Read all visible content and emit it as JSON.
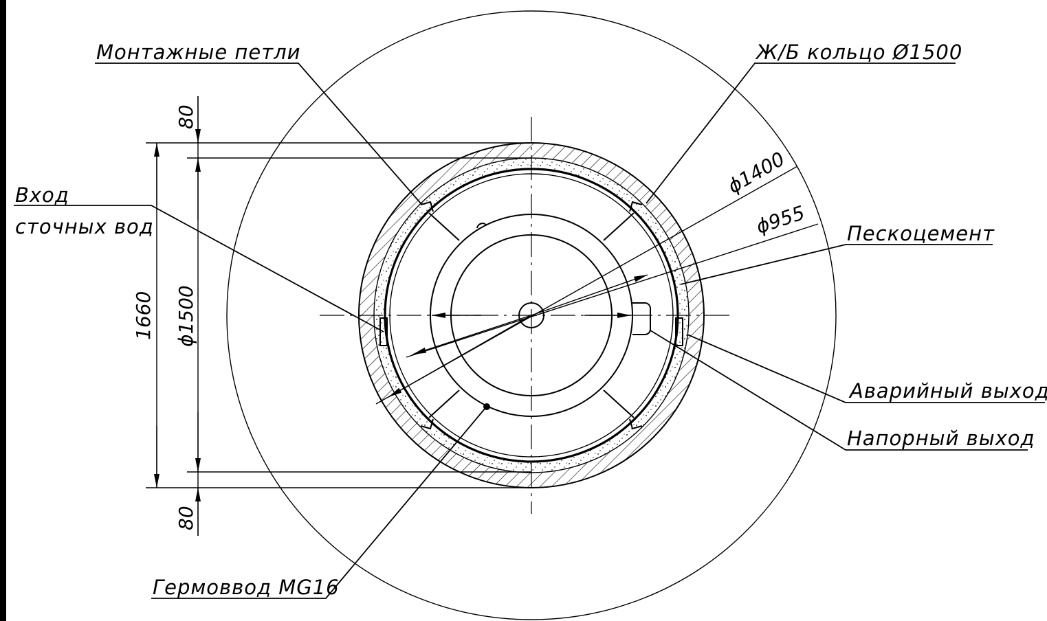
{
  "labels": {
    "mounting_loops": "Монтажные петли",
    "concrete_ring": "Ж/Б кольцо Ø1500",
    "inlet_line1": "Вход",
    "inlet_line2": "сточных вод",
    "sand_cement": "Пескоцемент",
    "emergency_outlet": "Аварийный выход",
    "pressure_outlet": "Напорный выход",
    "cable_gland": "Гермоввод MG16"
  },
  "dimensions": {
    "d1400": "ϕ1400",
    "d955": "ϕ955",
    "d1500": "ϕ1500",
    "h1660": "1660",
    "top80": "80",
    "bottom80": "80"
  },
  "colors": {
    "line": "#000000",
    "background": "#ffffff"
  }
}
